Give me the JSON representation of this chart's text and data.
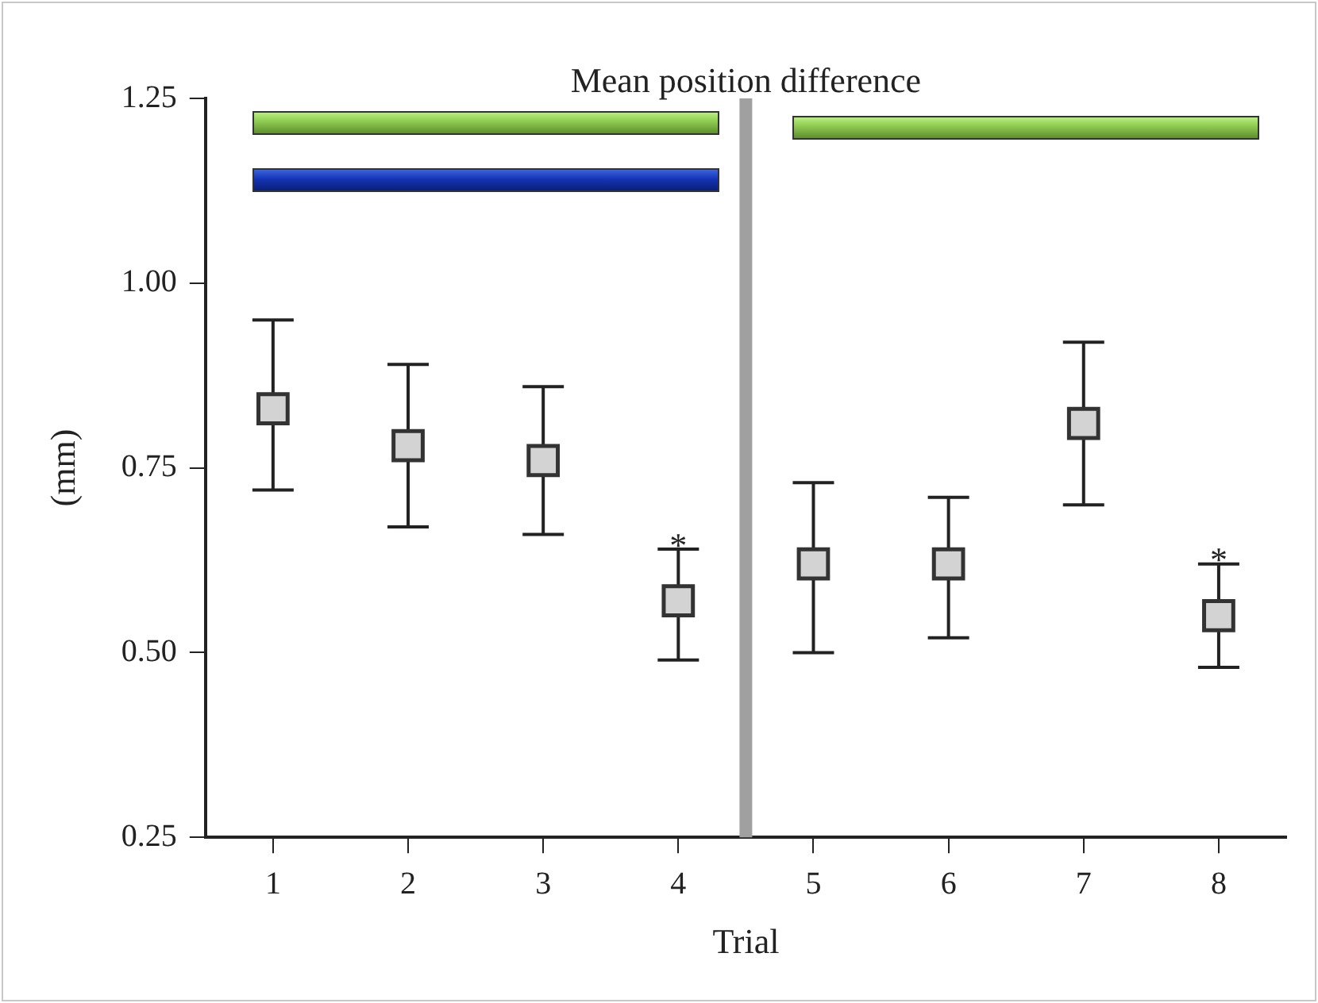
{
  "chart_data": {
    "type": "scatter",
    "title": "Mean position difference",
    "xlabel": "Trial",
    "ylabel": "(mm)",
    "x": [
      1,
      2,
      3,
      4,
      5,
      6,
      7,
      8
    ],
    "xlim": [
      0.5,
      8.5
    ],
    "xticks": [
      1,
      2,
      3,
      4,
      5,
      6,
      7,
      8
    ],
    "ref_lines": [
      {
        "axis": "x",
        "value": 4.5,
        "color": "#a0a0a0"
      }
    ],
    "values": [
      0.83,
      0.78,
      0.76,
      0.57,
      0.62,
      0.62,
      0.81,
      0.55
    ],
    "errors": [
      [
        0.72,
        0.95
      ],
      [
        0.67,
        0.89
      ],
      [
        0.66,
        0.86
      ],
      [
        0.49,
        0.64
      ],
      [
        0.5,
        0.73
      ],
      [
        0.52,
        0.71
      ],
      [
        0.7,
        0.92
      ],
      [
        0.48,
        0.62
      ]
    ],
    "color": "#d3d3d3",
    "marker": "square",
    "ylim": [
      0.25,
      1.25
    ],
    "yticks": [
      {
        "value": 0.25,
        "label": "0.25"
      },
      {
        "value": 0.5,
        "label": "0.50"
      },
      {
        "value": 0.75,
        "label": "0.75"
      },
      {
        "value": 1,
        "label": "1.00"
      },
      {
        "value": 1.25,
        "label": "1.25"
      }
    ],
    "annotations": [
      {
        "text": "*",
        "x": 4,
        "y": 0.64
      },
      {
        "text": "*",
        "x": 8,
        "y": 0.62
      }
    ],
    "grid": false,
    "legend": false
  }
}
